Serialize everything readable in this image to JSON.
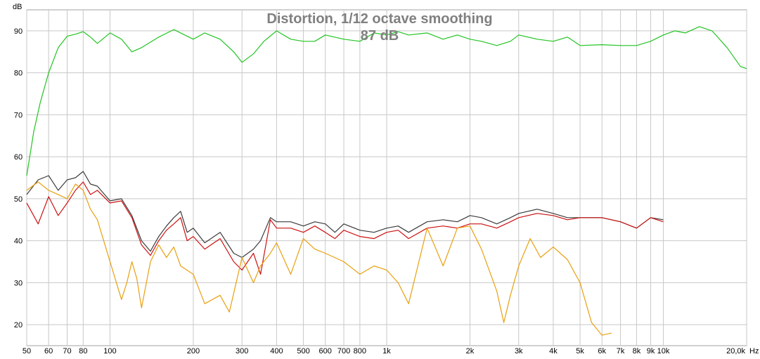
{
  "chart_data": {
    "type": "line",
    "title": "Distortion, 1/12 octave smoothing",
    "subtitle": "87 dB",
    "y_unit": "dB",
    "x_unit": "Hz",
    "xscale": "log",
    "xlim": [
      50,
      20000
    ],
    "ylim": [
      15,
      95
    ],
    "grid": true,
    "x_ticks": [
      50,
      60,
      70,
      80,
      100,
      200,
      300,
      400,
      500,
      600,
      700,
      800,
      1000,
      2000,
      3000,
      4000,
      5000,
      6000,
      7000,
      8000,
      9000,
      10000,
      20000
    ],
    "x_tick_labels": [
      "50",
      "60",
      "70",
      "80",
      "100",
      "200",
      "300",
      "400",
      "500",
      "600",
      "700",
      "800",
      "1k",
      "2k",
      "3k",
      "4k",
      "5k",
      "6k",
      "7k",
      "8k",
      "9k",
      "10k",
      "20,0k"
    ],
    "y_ticks": [
      20,
      30,
      40,
      50,
      60,
      70,
      80,
      90
    ],
    "y_tick_labels": [
      "20",
      "30",
      "40",
      "50",
      "60",
      "70",
      "80",
      "90"
    ],
    "series": [
      {
        "color": "#22c422",
        "x": [
          50,
          53,
          56,
          60,
          65,
          70,
          75,
          80,
          85,
          90,
          100,
          110,
          120,
          130,
          150,
          170,
          180,
          200,
          220,
          250,
          280,
          300,
          330,
          360,
          400,
          450,
          500,
          550,
          600,
          700,
          800,
          900,
          1000,
          1100,
          1200,
          1400,
          1600,
          1800,
          2000,
          2200,
          2500,
          2800,
          3000,
          3500,
          4000,
          4500,
          5000,
          6000,
          7000,
          8000,
          9000,
          10000,
          11000,
          12000,
          13500,
          15000,
          17000,
          19000,
          20000
        ],
        "y": [
          55.5,
          66,
          73,
          80,
          86,
          88.7,
          89.2,
          89.8,
          88.5,
          87,
          89.5,
          88,
          85,
          86,
          88.5,
          90.3,
          89.5,
          88,
          89.5,
          88,
          85,
          82.5,
          84.5,
          87.5,
          90,
          88,
          87.5,
          87.5,
          89,
          88,
          87.5,
          89.5,
          89,
          89.8,
          89,
          89.5,
          88,
          89,
          88,
          87.5,
          86.5,
          87.5,
          89,
          88,
          87.5,
          88.5,
          86.5,
          86.7,
          86.5,
          86.5,
          87.5,
          89,
          90,
          89.5,
          91,
          90,
          86,
          81.5,
          81
        ]
      },
      {
        "color": "#3c3c3c",
        "x": [
          50,
          55,
          60,
          65,
          70,
          75,
          80,
          85,
          90,
          100,
          110,
          120,
          130,
          140,
          150,
          160,
          170,
          180,
          190,
          200,
          220,
          250,
          280,
          300,
          330,
          350,
          380,
          400,
          450,
          500,
          550,
          600,
          650,
          700,
          800,
          900,
          1000,
          1100,
          1200,
          1400,
          1600,
          1800,
          2000,
          2200,
          2500,
          2800,
          3000,
          3500,
          4000,
          4500,
          5000,
          6000,
          7000,
          8000,
          9000,
          10000
        ],
        "y": [
          51,
          54.5,
          55.5,
          52,
          54.5,
          55,
          56.5,
          53.5,
          53,
          49.5,
          50,
          46,
          40,
          37.5,
          41,
          43.5,
          45.5,
          47,
          42,
          43,
          39.5,
          42,
          37,
          36,
          38,
          40,
          45.5,
          44.5,
          44.5,
          43.5,
          44.5,
          44,
          42,
          44,
          42.5,
          42,
          43,
          43.5,
          42,
          44.5,
          45,
          44.5,
          46,
          45.5,
          44,
          45.5,
          46.5,
          47.5,
          46.5,
          45.5,
          45.5,
          45.5,
          44.5,
          43,
          45.5,
          45
        ]
      },
      {
        "color": "#cc1111",
        "x": [
          50,
          55,
          60,
          65,
          70,
          75,
          80,
          85,
          90,
          100,
          110,
          120,
          130,
          140,
          150,
          160,
          170,
          180,
          190,
          200,
          220,
          250,
          280,
          300,
          330,
          350,
          380,
          400,
          450,
          500,
          550,
          600,
          650,
          700,
          800,
          900,
          1000,
          1100,
          1200,
          1400,
          1600,
          1800,
          2000,
          2200,
          2500,
          2800,
          3000,
          3500,
          4000,
          4500,
          5000,
          6000,
          7000,
          8000,
          9000,
          10000
        ],
        "y": [
          49,
          44,
          50.5,
          46,
          49,
          52,
          54,
          51,
          52,
          49,
          49.5,
          45.5,
          39,
          36.5,
          40,
          42.5,
          44,
          45.5,
          40,
          41,
          38,
          40.5,
          35,
          33,
          37,
          32,
          45,
          43,
          43,
          42,
          43.5,
          42,
          40.5,
          42.5,
          41,
          40.5,
          42,
          42.5,
          40.5,
          43,
          43.5,
          43,
          44,
          44,
          43,
          44.5,
          45.5,
          46.5,
          46,
          45,
          45.5,
          45.5,
          44.5,
          43,
          45.5,
          44.5
        ]
      },
      {
        "color": "#e8a010",
        "x": [
          50,
          55,
          60,
          65,
          70,
          75,
          80,
          85,
          90,
          100,
          110,
          115,
          120,
          125,
          130,
          140,
          150,
          160,
          170,
          180,
          200,
          220,
          250,
          270,
          300,
          330,
          350,
          380,
          400,
          450,
          500,
          550,
          600,
          700,
          800,
          900,
          1000,
          1100,
          1200,
          1400,
          1600,
          1800,
          2000,
          2200,
          2500,
          2650,
          2800,
          3000,
          3300,
          3600,
          4000,
          4500,
          5000,
          5500,
          6000,
          6500
        ],
        "y": [
          52,
          54,
          52,
          51,
          50,
          53.5,
          52,
          47.5,
          45,
          35,
          26,
          30,
          35,
          31,
          24,
          35,
          39,
          36,
          38.5,
          34,
          32,
          25,
          27,
          23,
          36,
          30,
          34,
          37,
          39.5,
          32,
          40.5,
          38,
          37,
          35,
          32,
          34,
          33,
          30,
          25,
          43,
          34,
          43,
          43.5,
          38,
          28,
          20.5,
          27,
          34,
          40.5,
          36,
          38.5,
          35.5,
          30,
          20.5,
          17.5,
          18
        ]
      }
    ]
  }
}
